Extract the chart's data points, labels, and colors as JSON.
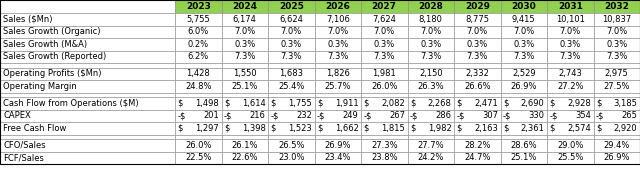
{
  "years": [
    "2023",
    "2024",
    "2025",
    "2026",
    "2027",
    "2028",
    "2029",
    "2030",
    "2031",
    "2032"
  ],
  "col_header_bg": "#92D050",
  "col_header_text": "#000000",
  "header_font_size": 6.5,
  "cell_font_size": 6.0,
  "label_font_size": 6.0,
  "rows": [
    {
      "label": "Sales ($Mn)",
      "values": [
        "5,755",
        "6,174",
        "6,624",
        "7,106",
        "7,624",
        "8,180",
        "8,775",
        "9,415",
        "10,101",
        "10,837"
      ],
      "spacer": false,
      "prefix": ""
    },
    {
      "label": "Sales Growth (Organic)",
      "values": [
        "6.0%",
        "7.0%",
        "7.0%",
        "7.0%",
        "7.0%",
        "7.0%",
        "7.0%",
        "7.0%",
        "7.0%",
        "7.0%"
      ],
      "spacer": false,
      "prefix": ""
    },
    {
      "label": "Sales Growth (M&A)",
      "values": [
        "0.2%",
        "0.3%",
        "0.3%",
        "0.3%",
        "0.3%",
        "0.3%",
        "0.3%",
        "0.3%",
        "0.3%",
        "0.3%"
      ],
      "spacer": false,
      "prefix": ""
    },
    {
      "label": "Sales Growth (Reported)",
      "values": [
        "6.2%",
        "7.3%",
        "7.3%",
        "7.3%",
        "7.3%",
        "7.3%",
        "7.3%",
        "7.3%",
        "7.3%",
        "7.3%"
      ],
      "spacer": false,
      "prefix": ""
    },
    {
      "label": "",
      "values": [
        "",
        "",
        "",
        "",
        "",
        "",
        "",
        "",
        "",
        ""
      ],
      "spacer": true,
      "prefix": ""
    },
    {
      "label": "Operating Profits ($Mn)",
      "values": [
        "1,428",
        "1,550",
        "1,683",
        "1,826",
        "1,981",
        "2,150",
        "2,332",
        "2,529",
        "2,743",
        "2,975"
      ],
      "spacer": false,
      "prefix": ""
    },
    {
      "label": "Operating Margin",
      "values": [
        "24.8%",
        "25.1%",
        "25.4%",
        "25.7%",
        "26.0%",
        "26.3%",
        "26.6%",
        "26.9%",
        "27.2%",
        "27.5%"
      ],
      "spacer": false,
      "prefix": ""
    },
    {
      "label": "",
      "values": [
        "",
        "",
        "",
        "",
        "",
        "",
        "",
        "",
        "",
        ""
      ],
      "spacer": true,
      "prefix": ""
    },
    {
      "label": "Cash Flow from Operations ($M)",
      "values": [
        "1,498",
        "1,614",
        "1,755",
        "1,911",
        "2,082",
        "2,268",
        "2,471",
        "2,690",
        "2,928",
        "3,185"
      ],
      "spacer": false,
      "prefix": "$"
    },
    {
      "label": "CAPEX",
      "values": [
        "201",
        "216",
        "232",
        "249",
        "267",
        "286",
        "307",
        "330",
        "354",
        "265"
      ],
      "spacer": false,
      "prefix": "-$"
    },
    {
      "label": "Free Cash Flow",
      "values": [
        "1,297",
        "1,398",
        "1,523",
        "1,662",
        "1,815",
        "1,982",
        "2,163",
        "2,361",
        "2,574",
        "2,920"
      ],
      "spacer": false,
      "prefix": "$"
    },
    {
      "label": "",
      "values": [
        "",
        "",
        "",
        "",
        "",
        "",
        "",
        "",
        "",
        ""
      ],
      "spacer": true,
      "prefix": ""
    },
    {
      "label": "CFO/Sales",
      "values": [
        "26.0%",
        "26.1%",
        "26.5%",
        "26.9%",
        "27.3%",
        "27.7%",
        "28.2%",
        "28.6%",
        "29.0%",
        "29.4%"
      ],
      "spacer": false,
      "prefix": ""
    },
    {
      "label": "FCF/Sales",
      "values": [
        "22.5%",
        "22.6%",
        "23.0%",
        "23.4%",
        "23.8%",
        "24.2%",
        "24.7%",
        "25.1%",
        "25.5%",
        "26.9%"
      ],
      "spacer": false,
      "prefix": ""
    }
  ],
  "figure_bg": "#FFFFFF",
  "grid_color": "#888888",
  "border_color": "#000000"
}
